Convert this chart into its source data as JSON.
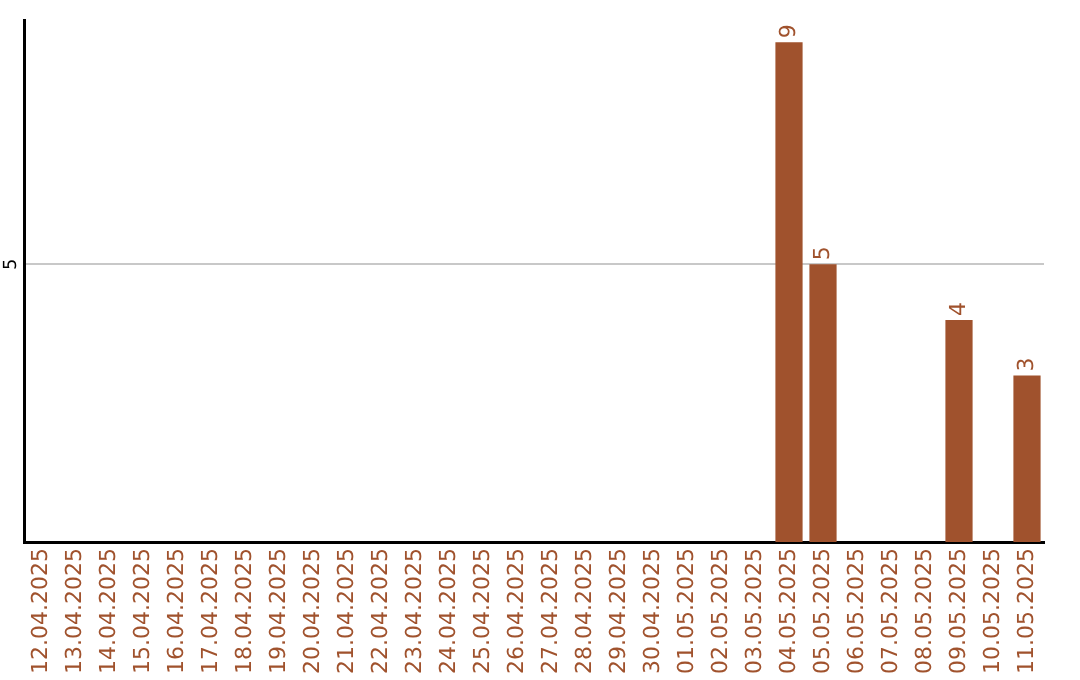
{
  "chart_data": {
    "type": "bar",
    "categories": [
      "12.04.2025",
      "13.04.2025",
      "14.04.2025",
      "15.04.2025",
      "16.04.2025",
      "17.04.2025",
      "18.04.2025",
      "19.04.2025",
      "20.04.2025",
      "21.04.2025",
      "22.04.2025",
      "23.04.2025",
      "24.04.2025",
      "25.04.2025",
      "26.04.2025",
      "27.04.2025",
      "28.04.2025",
      "29.04.2025",
      "30.04.2025",
      "01.05.2025",
      "02.05.2025",
      "03.05.2025",
      "04.05.2025",
      "05.05.2025",
      "06.05.2025",
      "07.05.2025",
      "08.05.2025",
      "09.05.2025",
      "10.05.2025",
      "11.05.2025"
    ],
    "values": [
      null,
      null,
      null,
      null,
      null,
      null,
      null,
      null,
      null,
      null,
      null,
      null,
      null,
      null,
      null,
      null,
      null,
      null,
      null,
      null,
      null,
      null,
      9,
      5,
      null,
      null,
      null,
      4,
      null,
      3
    ],
    "color": "#a0522d",
    "ylim": [
      0,
      9.4
    ],
    "yticks": [
      5
    ],
    "grid": "y",
    "data_labels": true,
    "legend": false
  }
}
